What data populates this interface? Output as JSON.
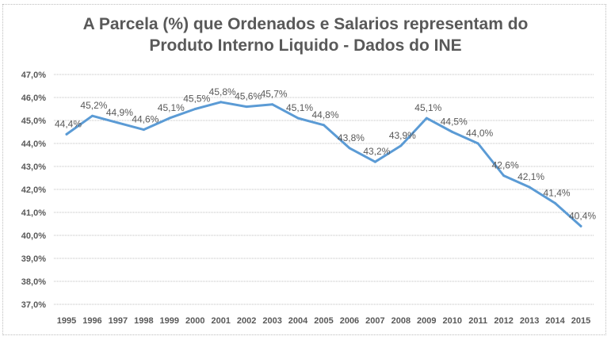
{
  "chart_data": {
    "type": "line",
    "title_line1": "A Parcela (%) que Ordenados e Salarios representam do",
    "title_line2": "Produto Interno Liquido - Dados do INE",
    "xlabel": "",
    "ylabel": "",
    "categories": [
      "1995",
      "1996",
      "1997",
      "1998",
      "1999",
      "2000",
      "2001",
      "2002",
      "2003",
      "2004",
      "2005",
      "2006",
      "2007",
      "2008",
      "2009",
      "2010",
      "2011",
      "2012",
      "2013",
      "2014",
      "2015"
    ],
    "series": [
      {
        "name": "Parcela (%)",
        "values": [
          44.4,
          45.2,
          44.9,
          44.6,
          45.1,
          45.5,
          45.8,
          45.6,
          45.7,
          45.1,
          44.8,
          43.8,
          43.2,
          43.9,
          45.1,
          44.5,
          44.0,
          42.6,
          42.1,
          41.4,
          40.4
        ],
        "labels": [
          "44,4%",
          "45,2%",
          "44,9%",
          "44,6%",
          "45,1%",
          "45,5%",
          "45,8%",
          "45,6%",
          "45,7%",
          "45,1%",
          "44,8%",
          "43,8%",
          "43,2%",
          "43,9%",
          "45,1%",
          "44,5%",
          "44,0%",
          "42,6%",
          "42,1%",
          "41,4%",
          "40,4%"
        ],
        "color": "#5b9bd5"
      }
    ],
    "ylim": [
      37.0,
      47.0
    ],
    "yticks": [
      47.0,
      46.0,
      45.0,
      44.0,
      43.0,
      42.0,
      41.0,
      40.0,
      39.0,
      38.0,
      37.0
    ],
    "ytick_labels": [
      "47,0%",
      "46,0%",
      "45,0%",
      "44,0%",
      "43,0%",
      "42,0%",
      "41,0%",
      "40,0%",
      "39,0%",
      "38,0%",
      "37,0%"
    ],
    "grid": true,
    "legend": "none"
  }
}
